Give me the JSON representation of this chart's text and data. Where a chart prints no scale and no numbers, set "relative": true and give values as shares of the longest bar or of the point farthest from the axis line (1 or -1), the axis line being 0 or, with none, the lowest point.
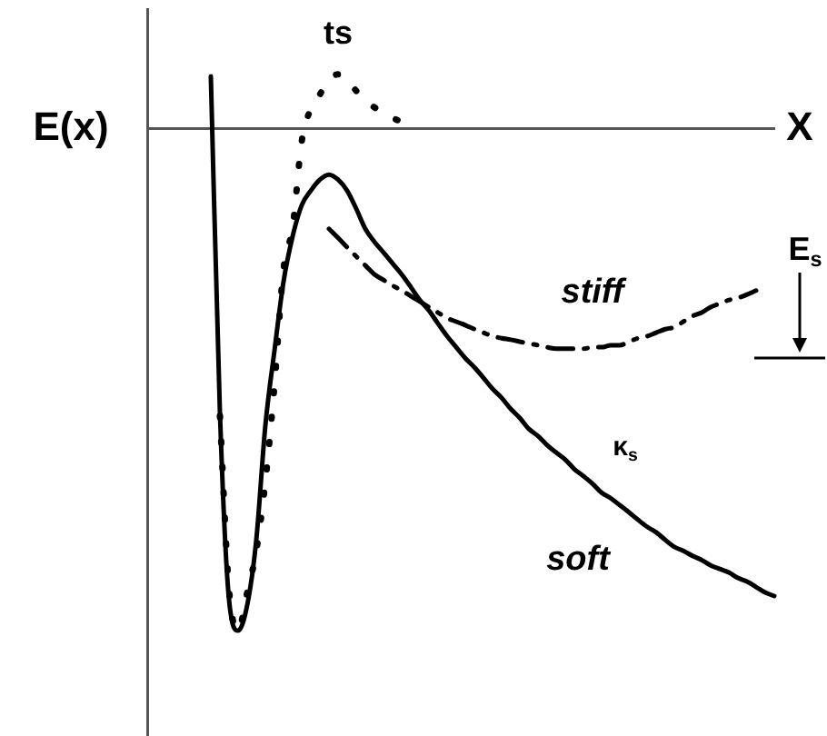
{
  "chart_data": {
    "type": "line",
    "relative": true,
    "xlabel": "X",
    "ylabel": "E(x)",
    "legend": false,
    "grid": false,
    "tick_labels": false,
    "marker": "none",
    "categories": [
      null,
      null,
      null,
      null,
      null,
      null,
      null,
      null,
      null,
      null,
      null,
      null,
      null,
      null,
      null,
      null,
      null,
      null,
      null,
      null,
      null,
      null,
      null,
      null,
      null,
      null,
      null,
      null,
      null,
      null,
      null,
      null,
      null,
      null,
      null,
      null,
      null,
      null,
      null,
      null,
      null,
      null,
      null,
      null,
      null,
      null,
      null,
      null,
      null,
      null,
      null,
      null,
      null,
      null,
      null,
      null,
      null,
      null,
      null,
      null,
      null,
      null,
      null,
      null,
      null,
      null,
      null,
      null,
      null,
      null
    ],
    "series": [
      {
        "name": "soft",
        "color": "#000000",
        "line_style": "solid",
        "values": [
          null,
          null,
          null,
          null,
          null,
          null,
          null,
          0.105,
          -0.565,
          -0.938,
          -1,
          -0.949,
          -0.819,
          -0.591,
          -0.442,
          -0.304,
          -0.214,
          -0.152,
          -0.123,
          -0.101,
          -0.091,
          -0.101,
          -0.123,
          -0.159,
          -0.199,
          -0.225,
          -0.246,
          -0.268,
          -0.29,
          -0.315,
          -0.341,
          -0.362,
          -0.388,
          -0.413,
          -0.435,
          -0.457,
          -0.475,
          -0.496,
          -0.518,
          -0.536,
          -0.558,
          -0.576,
          -0.598,
          -0.612,
          -0.63,
          -0.645,
          -0.659,
          -0.678,
          -0.692,
          -0.707,
          -0.725,
          -0.736,
          -0.75,
          -0.764,
          -0.779,
          -0.793,
          -0.804,
          -0.819,
          -0.833,
          -0.841,
          -0.851,
          -0.859,
          -0.87,
          -0.877,
          -0.884,
          -0.895,
          -0.902,
          -0.913,
          -0.924,
          -0.931
        ]
      },
      {
        "color": "#000000",
        "line_style": "dotted",
        "values": [
          null,
          null,
          null,
          null,
          null,
          null,
          null,
          null,
          -0.572,
          -0.917,
          -1,
          -0.924,
          -0.841,
          -0.703,
          -0.511,
          -0.279,
          -0.196,
          -0.025,
          0.04,
          0.069,
          0.098,
          0.109,
          0.098,
          0.076,
          0.058,
          0.043,
          0.033,
          0.022,
          0.014,
          0.004,
          null,
          null,
          null,
          null,
          null,
          null,
          null,
          null,
          null,
          null,
          null,
          null,
          null,
          null,
          null,
          null,
          null,
          null,
          null,
          null,
          null,
          null,
          null,
          null,
          null,
          null,
          null,
          null,
          null,
          null,
          null,
          null,
          null,
          null,
          null,
          null,
          null,
          null,
          null,
          null
        ]
      },
      {
        "name": "stiff",
        "color": "#000000",
        "line_style": "dashed",
        "values": [
          null,
          null,
          null,
          null,
          null,
          null,
          null,
          null,
          null,
          null,
          null,
          null,
          null,
          null,
          null,
          null,
          null,
          null,
          null,
          null,
          -0.199,
          -0.217,
          -0.236,
          -0.254,
          -0.272,
          -0.29,
          -0.301,
          -0.312,
          -0.322,
          -0.333,
          -0.344,
          -0.355,
          -0.366,
          -0.377,
          -0.384,
          -0.391,
          -0.399,
          -0.406,
          -0.413,
          -0.417,
          -0.42,
          -0.424,
          -0.428,
          -0.431,
          -0.435,
          -0.438,
          -0.438,
          -0.438,
          -0.438,
          -0.435,
          -0.435,
          -0.431,
          -0.431,
          -0.424,
          -0.417,
          -0.413,
          -0.406,
          -0.399,
          -0.395,
          -0.384,
          -0.373,
          -0.366,
          -0.355,
          -0.348,
          -0.341,
          -0.337,
          -0.33,
          -0.322,
          null,
          null
        ]
      }
    ],
    "annotations": [
      "ts",
      "κ$_{s}$",
      "E$_{s}$"
    ]
  }
}
